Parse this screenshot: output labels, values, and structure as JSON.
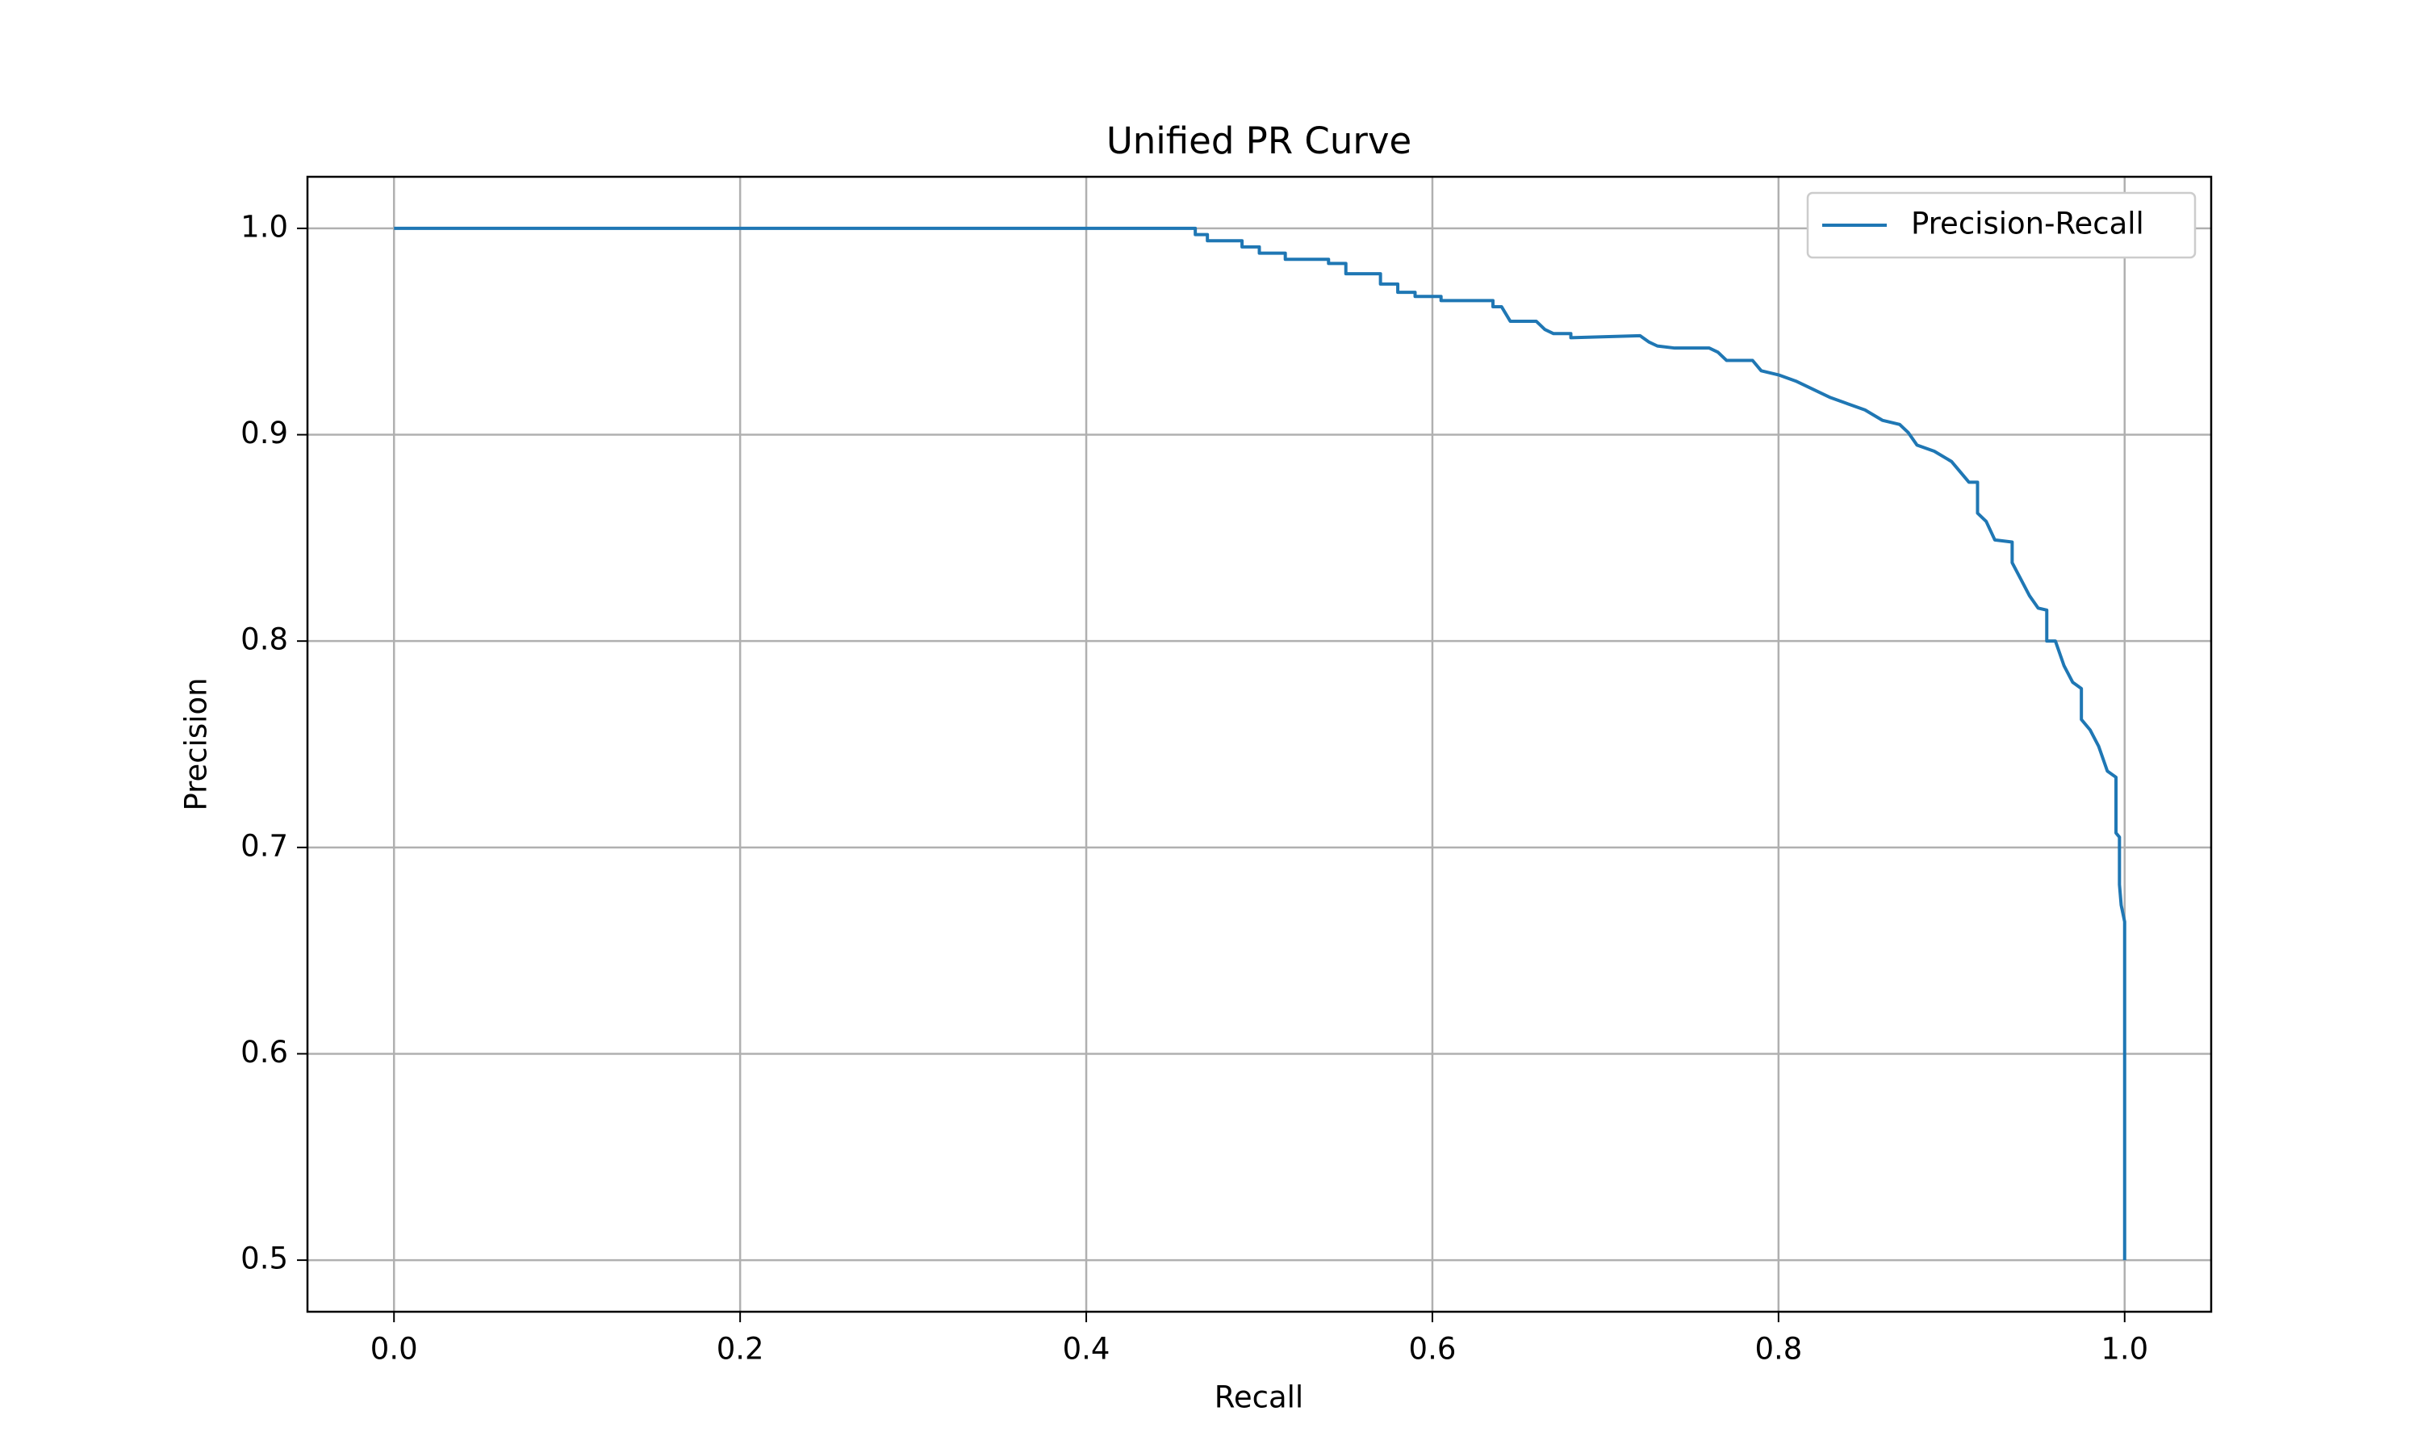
{
  "chart_data": {
    "type": "line",
    "title": "Unified PR Curve",
    "x_label": "Recall",
    "y_label": "Precision",
    "x": [
      0,
      0.463,
      0.463,
      0.47,
      0.47,
      0.49,
      0.49,
      0.5,
      0.5,
      0.515,
      0.515,
      0.54,
      0.54,
      0.55,
      0.55,
      0.57,
      0.57,
      0.58,
      0.58,
      0.59,
      0.59,
      0.605,
      0.605,
      0.635,
      0.635,
      0.64,
      0.645,
      0.66,
      0.665,
      0.67,
      0.68,
      0.68,
      0.72,
      0.725,
      0.73,
      0.74,
      0.76,
      0.765,
      0.77,
      0.785,
      0.79,
      0.8,
      0.81,
      0.82,
      0.83,
      0.84,
      0.85,
      0.86,
      0.87,
      0.875,
      0.88,
      0.89,
      0.9,
      0.905,
      0.91,
      0.915,
      0.915,
      0.92,
      0.925,
      0.935,
      0.935,
      0.94,
      0.945,
      0.95,
      0.955,
      0.955,
      0.96,
      0.965,
      0.97,
      0.975,
      0.975,
      0.98,
      0.985,
      0.99,
      0.995,
      0.995,
      0.997,
      0.997,
      0.998,
      1.0,
      1.0
    ],
    "series": [
      {
        "name": "Precision-Recall",
        "color": "#1f77b4",
        "values": [
          1.0,
          1.0,
          0.997,
          0.997,
          0.994,
          0.994,
          0.991,
          0.991,
          0.988,
          0.988,
          0.985,
          0.985,
          0.983,
          0.983,
          0.978,
          0.978,
          0.973,
          0.973,
          0.969,
          0.969,
          0.967,
          0.967,
          0.965,
          0.965,
          0.962,
          0.962,
          0.955,
          0.955,
          0.951,
          0.949,
          0.949,
          0.947,
          0.948,
          0.945,
          0.943,
          0.942,
          0.942,
          0.94,
          0.936,
          0.936,
          0.931,
          0.929,
          0.926,
          0.922,
          0.918,
          0.915,
          0.912,
          0.907,
          0.905,
          0.901,
          0.895,
          0.892,
          0.887,
          0.882,
          0.877,
          0.877,
          0.862,
          0.858,
          0.849,
          0.848,
          0.838,
          0.83,
          0.822,
          0.816,
          0.815,
          0.8,
          0.8,
          0.788,
          0.78,
          0.777,
          0.762,
          0.757,
          0.749,
          0.737,
          0.734,
          0.707,
          0.705,
          0.682,
          0.672,
          0.664,
          0.5
        ]
      }
    ],
    "xlim": [
      -0.05,
      1.05
    ],
    "ylim": [
      0.475,
      1.025
    ],
    "xticks": [
      {
        "value": 0,
        "label": "0.0"
      },
      0.2,
      0.4,
      0.6,
      0.8,
      {
        "value": 1,
        "label": "1.0"
      }
    ],
    "yticks": [
      0.5,
      0.6,
      0.7,
      0.8,
      0.9,
      {
        "value": 1,
        "label": "1.0"
      }
    ],
    "grid": true,
    "legend": "upper right"
  }
}
